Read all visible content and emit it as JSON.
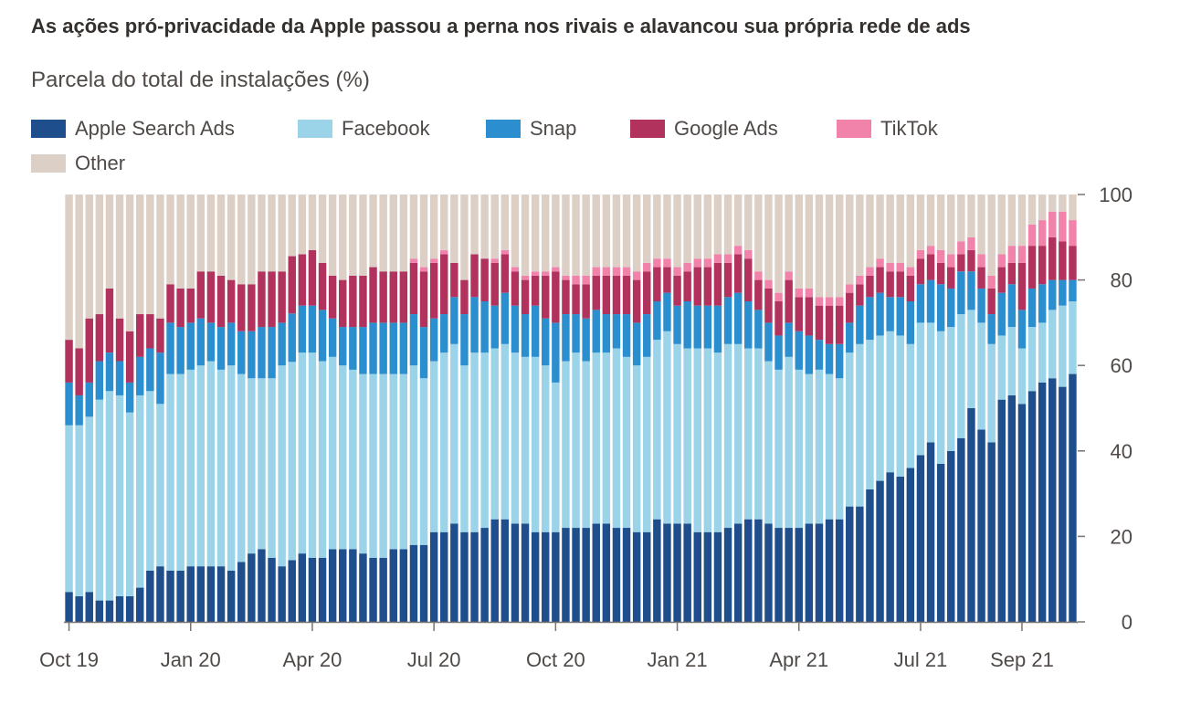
{
  "title": "As ações pró-privacidade da Apple passou a perna nos rivais e alavancou sua própria rede de ads",
  "subtitle": "Parcela do total de instalações (%)",
  "legend": [
    {
      "name": "Apple Search Ads",
      "color": "#1f4e8c"
    },
    {
      "name": "Facebook",
      "color": "#9bd3e8"
    },
    {
      "name": "Snap",
      "color": "#2b8fcf"
    },
    {
      "name": "Google Ads",
      "color": "#b1325d"
    },
    {
      "name": "TikTok",
      "color": "#f183aa"
    },
    {
      "name": "Other",
      "color": "#dccfc6"
    }
  ],
  "chart_data": {
    "type": "bar",
    "stacked": true,
    "ylim": [
      0,
      100
    ],
    "y_ticks": [
      "0",
      "20",
      "40",
      "60",
      "80",
      "100"
    ],
    "x_tick_labels": [
      "Oct 19",
      "Jan 20",
      "Apr 20",
      "Jul 20",
      "Oct 20",
      "Jan 21",
      "Apr 21",
      "Jul 21",
      "Sep 21"
    ],
    "x_tick_bar_index": [
      0,
      12,
      24,
      36,
      48,
      60,
      72,
      84,
      94
    ],
    "series": [
      {
        "name": "Apple Search Ads",
        "color": "#1f4e8c",
        "values": [
          7,
          6,
          7,
          5,
          5,
          6,
          6,
          8,
          12,
          13,
          12,
          12,
          13,
          13,
          13,
          13,
          12,
          14,
          16,
          17,
          15,
          13,
          14,
          16,
          15,
          15,
          17,
          17,
          17,
          16,
          15,
          15,
          17,
          17,
          18,
          18,
          21,
          21,
          23,
          21,
          21,
          22,
          24,
          24,
          23,
          23,
          21,
          21,
          21,
          22,
          22,
          22,
          23,
          23,
          22,
          22,
          21,
          21,
          24,
          23,
          23,
          23,
          21,
          21,
          21,
          22,
          23,
          24,
          24,
          23,
          22,
          22,
          22,
          23,
          23,
          24,
          24,
          27,
          27,
          31,
          33,
          35,
          34,
          36,
          39,
          42,
          37,
          40,
          43,
          50,
          45,
          42,
          52,
          53,
          51,
          54,
          56,
          57,
          55,
          58
        ]
      },
      {
        "name": "Facebook",
        "color": "#9bd3e8",
        "values": [
          39,
          40,
          41,
          47,
          49,
          47,
          43,
          45,
          42,
          38,
          46,
          46,
          46,
          47,
          48,
          46,
          48,
          44,
          41,
          40,
          42,
          47,
          45,
          47,
          48,
          46,
          45,
          43,
          42,
          42,
          43,
          43,
          41,
          41,
          42,
          39,
          40,
          42,
          42,
          39,
          42,
          41,
          40,
          41,
          40,
          39,
          41,
          39,
          35,
          39,
          41,
          39,
          40,
          40,
          42,
          40,
          39,
          41,
          42,
          45,
          42,
          41,
          43,
          43,
          42,
          43,
          42,
          40,
          40,
          38,
          37,
          40,
          37,
          35,
          36,
          34,
          33,
          36,
          38,
          35,
          34,
          33,
          33,
          29,
          31,
          28,
          31,
          29,
          29,
          23,
          25,
          23,
          15,
          16,
          13,
          15,
          14,
          16,
          19,
          17
        ]
      },
      {
        "name": "Snap",
        "color": "#2b8fcf",
        "values": [
          10,
          7,
          8,
          9,
          9,
          8,
          7,
          9,
          10,
          12,
          12,
          11,
          11,
          11,
          9,
          10,
          10,
          10,
          11,
          12,
          12,
          10,
          11,
          11,
          11,
          12,
          9,
          9,
          10,
          11,
          12,
          12,
          12,
          12,
          12,
          12,
          10,
          9,
          11,
          12,
          13,
          12,
          10,
          12,
          11,
          10,
          12,
          11,
          14,
          11,
          9,
          10,
          10,
          9,
          8,
          10,
          10,
          10,
          9,
          9,
          9,
          11,
          10,
          10,
          11,
          11,
          12,
          11,
          9,
          9,
          8,
          8,
          9,
          9,
          7,
          7,
          8,
          7,
          9,
          10,
          10,
          8,
          9,
          10,
          9,
          10,
          11,
          9,
          10,
          9,
          8,
          7,
          10,
          10,
          9,
          9,
          9,
          7,
          6,
          5
        ]
      },
      {
        "name": "Google Ads",
        "color": "#b1325d",
        "values": [
          10,
          11,
          15,
          11,
          15,
          10,
          12,
          10,
          8,
          8,
          9,
          9,
          8,
          11,
          12,
          12,
          10,
          11,
          11,
          13,
          13,
          12,
          13,
          12,
          13,
          11,
          10,
          11,
          12,
          12,
          13,
          12,
          12,
          12,
          12,
          13,
          13,
          14,
          8,
          8,
          10,
          10,
          10,
          9,
          8,
          8,
          7,
          10,
          12,
          8,
          7,
          8,
          8,
          9,
          9,
          9,
          10,
          10,
          8,
          6,
          7,
          7,
          9,
          9,
          10,
          8,
          9,
          10,
          7,
          8,
          8,
          10,
          8,
          9,
          8,
          9,
          9,
          7,
          5,
          5,
          6,
          6,
          6,
          6,
          6,
          6,
          5,
          5,
          4,
          5,
          5,
          6,
          6,
          5,
          11,
          10,
          9,
          10,
          9,
          8
        ]
      },
      {
        "name": "TikTok",
        "color": "#f183aa",
        "values": [
          0,
          0,
          0,
          0,
          0,
          0,
          0,
          0,
          0,
          0,
          0,
          0,
          0,
          0,
          0,
          0,
          0,
          0,
          0,
          0,
          0,
          0,
          0,
          0,
          0,
          0,
          0,
          0,
          0,
          0,
          0,
          0,
          0,
          0,
          1,
          1,
          1,
          1,
          0,
          0,
          0,
          0,
          1,
          1,
          1,
          1,
          1,
          1,
          1,
          1,
          2,
          2,
          2,
          2,
          2,
          2,
          2,
          2,
          2,
          2,
          2,
          2,
          2,
          2,
          2,
          2,
          2,
          2,
          2,
          2,
          2,
          2,
          2,
          2,
          2,
          2,
          2,
          2,
          2,
          2,
          2,
          2,
          2,
          2,
          2,
          2,
          3,
          3,
          3,
          3,
          3,
          3,
          3,
          4,
          4,
          5,
          6,
          6,
          7,
          6
        ]
      },
      {
        "name": "Other",
        "color": "#dccfc6",
        "values": [
          34,
          36,
          29,
          28,
          22,
          29,
          32,
          28,
          28,
          29,
          21,
          22,
          22,
          18,
          18,
          19,
          20,
          21,
          21,
          18,
          18,
          18,
          14,
          14,
          13,
          16,
          19,
          20,
          19,
          19,
          17,
          18,
          18,
          18,
          15,
          17,
          15,
          13,
          16,
          20,
          14,
          15,
          15,
          13,
          17,
          19,
          18,
          18,
          17,
          19,
          19,
          19,
          17,
          17,
          17,
          17,
          18,
          16,
          15,
          15,
          17,
          16,
          15,
          15,
          14,
          14,
          12,
          13,
          18,
          20,
          23,
          18,
          22,
          22,
          24,
          24,
          24,
          21,
          19,
          17,
          15,
          16,
          16,
          17,
          13,
          12,
          13,
          14,
          11,
          10,
          14,
          19,
          14,
          12,
          12,
          7,
          6,
          4,
          4,
          6
        ]
      }
    ]
  }
}
